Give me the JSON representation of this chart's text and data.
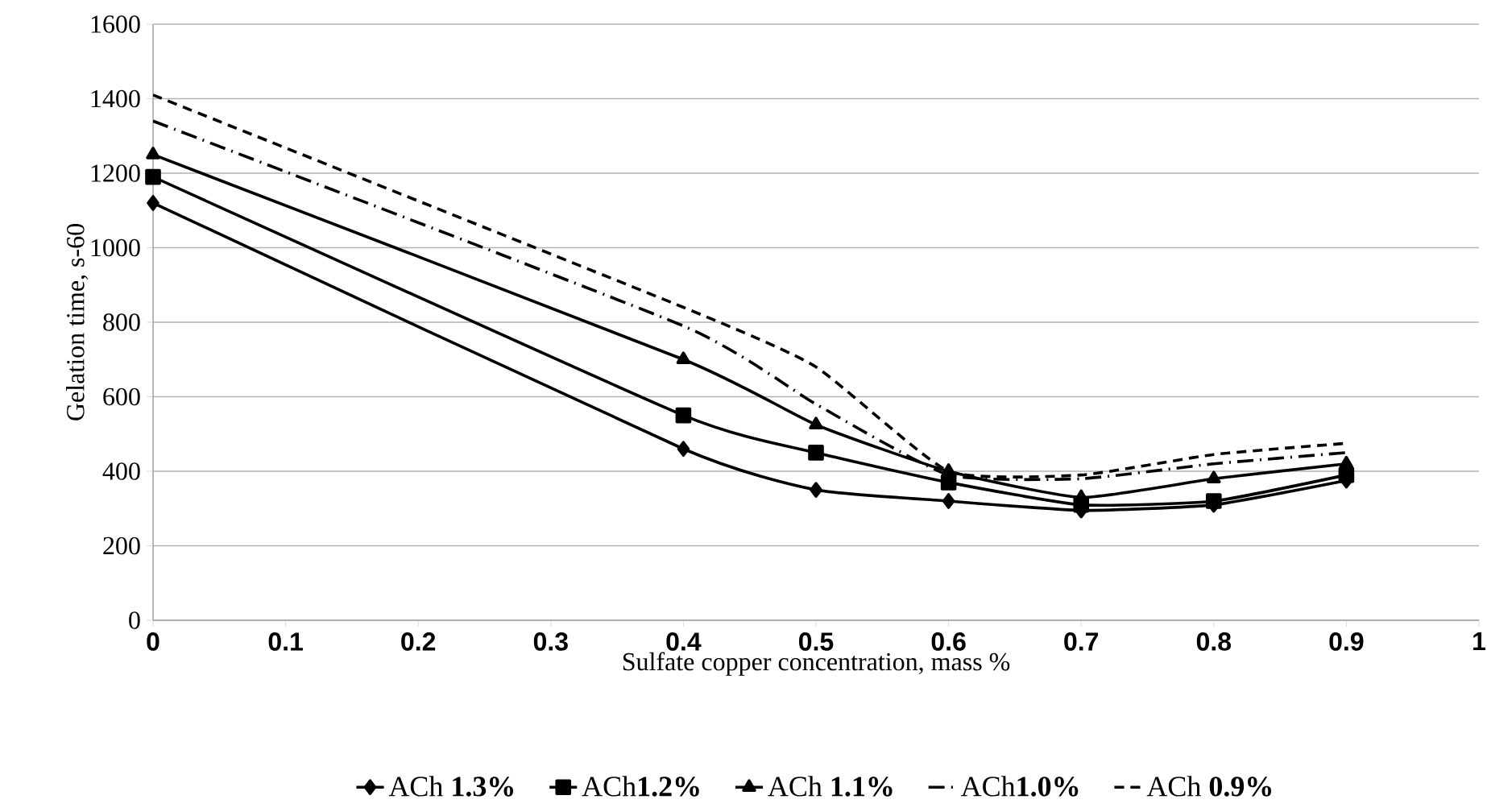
{
  "chart_data": {
    "type": "line",
    "xlabel": "Sulfate copper concentration, mass %",
    "ylabel": "Gelation time, s-60",
    "x": [
      0,
      0.4,
      0.5,
      0.6,
      0.7,
      0.8,
      0.9
    ],
    "xlim": [
      0,
      1
    ],
    "xticks": [
      0,
      0.1,
      0.2,
      0.3,
      0.4,
      0.5,
      0.6,
      0.7,
      0.8,
      0.9,
      1
    ],
    "ylim": [
      0,
      1600
    ],
    "yticks": [
      0,
      200,
      400,
      600,
      800,
      1000,
      1200,
      1400,
      1600
    ],
    "grid": "y",
    "legend": "bottom",
    "series": [
      {
        "name": "ACh **1.3%**",
        "color": "#000000",
        "marker": "diamond",
        "line_style": "solid",
        "values": [
          1120,
          460,
          350,
          320,
          295,
          310,
          375
        ]
      },
      {
        "name": "ACh**1.2%**",
        "color": "#000000",
        "marker": "square",
        "line_style": "solid",
        "values": [
          1190,
          550,
          450,
          370,
          310,
          320,
          390
        ]
      },
      {
        "name": "ACh **1.1%**",
        "color": "#000000",
        "marker": "triangle",
        "line_style": "solid",
        "values": [
          1250,
          700,
          525,
          400,
          330,
          380,
          420
        ]
      },
      {
        "name": "ACh**1.0%**",
        "color": "#000000",
        "marker": "none",
        "line_style": "dashdot",
        "values": [
          1340,
          790,
          580,
          390,
          380,
          420,
          450
        ]
      },
      {
        "name": "ACh **0.9%**",
        "color": "#000000",
        "marker": "none",
        "line_style": "dashed",
        "values": [
          1410,
          840,
          680,
          400,
          390,
          445,
          475
        ]
      }
    ]
  }
}
